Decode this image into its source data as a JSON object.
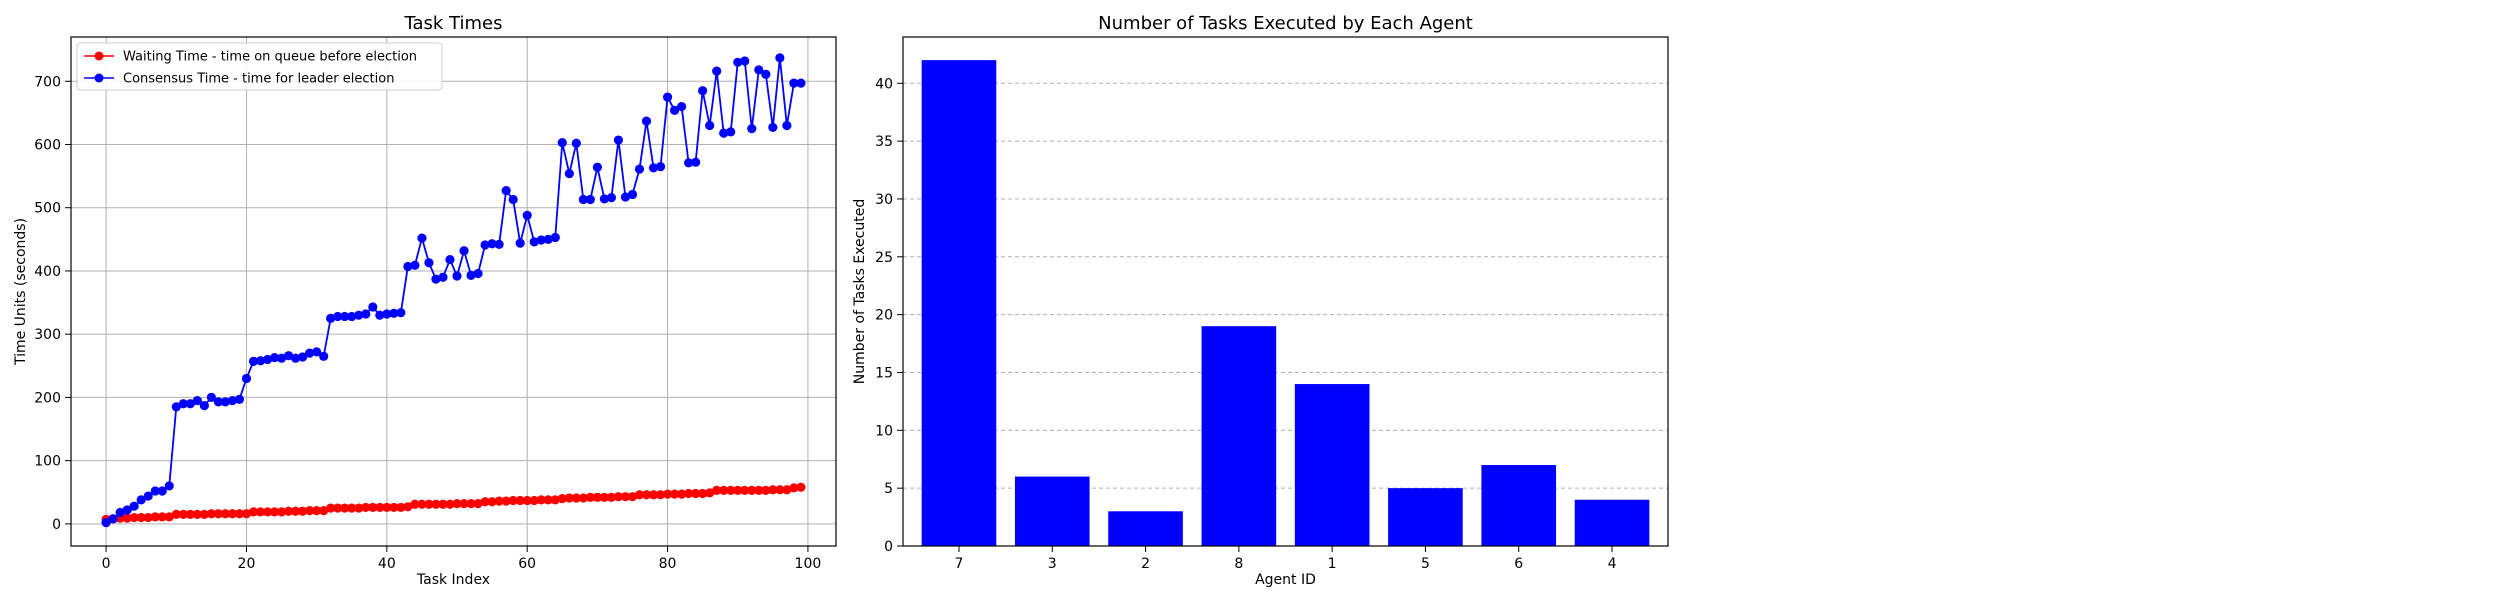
{
  "chart_data": [
    {
      "type": "line",
      "title": "Task Times",
      "xlabel": "Task Index",
      "ylabel": "Time Units (seconds)",
      "xlim": [
        -5,
        104
      ],
      "ylim": [
        -35,
        770
      ],
      "xticks": [
        0,
        20,
        40,
        60,
        80,
        100
      ],
      "yticks": [
        0,
        100,
        200,
        300,
        400,
        500,
        600,
        700
      ],
      "grid": true,
      "legend_position": "top-left",
      "series": [
        {
          "name": "Waiting Time - time on queue before election",
          "color": "#ff0000",
          "marker": "circle",
          "x": [
            0,
            1,
            2,
            3,
            4,
            5,
            6,
            7,
            8,
            9,
            10,
            11,
            12,
            13,
            14,
            15,
            16,
            17,
            18,
            19,
            20,
            21,
            22,
            23,
            24,
            25,
            26,
            27,
            28,
            29,
            30,
            31,
            32,
            33,
            34,
            35,
            36,
            37,
            38,
            39,
            40,
            41,
            42,
            43,
            44,
            45,
            46,
            47,
            48,
            49,
            50,
            51,
            52,
            53,
            54,
            55,
            56,
            57,
            58,
            59,
            60,
            61,
            62,
            63,
            64,
            65,
            66,
            67,
            68,
            69,
            70,
            71,
            72,
            73,
            74,
            75,
            76,
            77,
            78,
            79,
            80,
            81,
            82,
            83,
            84,
            85,
            86,
            87,
            88,
            89,
            90,
            91,
            92,
            93,
            94,
            95,
            96,
            97,
            98,
            99
          ],
          "y": [
            7,
            8,
            9,
            9,
            10,
            10,
            10,
            11,
            11,
            11,
            15,
            15,
            15,
            15,
            15,
            16,
            16,
            16,
            16,
            16,
            16,
            19,
            19,
            19,
            19,
            19,
            20,
            20,
            20,
            21,
            21,
            21,
            25,
            25,
            25,
            25,
            25,
            26,
            26,
            26,
            26,
            26,
            26,
            27,
            31,
            31,
            31,
            31,
            31,
            31,
            32,
            32,
            32,
            32,
            35,
            35,
            36,
            36,
            37,
            37,
            37,
            37,
            38,
            38,
            38,
            40,
            41,
            41,
            41,
            42,
            42,
            42,
            42,
            43,
            43,
            43,
            46,
            46,
            46,
            46,
            47,
            47,
            47,
            48,
            48,
            48,
            49,
            53,
            53,
            53,
            53,
            53,
            53,
            53,
            53,
            54,
            54,
            54,
            57,
            58
          ]
        },
        {
          "name": "Consensus Time - time for leader election",
          "color": "#0000ff",
          "marker": "circle",
          "x": [
            0,
            1,
            2,
            3,
            4,
            5,
            6,
            7,
            8,
            9,
            10,
            11,
            12,
            13,
            14,
            15,
            16,
            17,
            18,
            19,
            20,
            21,
            22,
            23,
            24,
            25,
            26,
            27,
            28,
            29,
            30,
            31,
            32,
            33,
            34,
            35,
            36,
            37,
            38,
            39,
            40,
            41,
            42,
            43,
            44,
            45,
            46,
            47,
            48,
            49,
            50,
            51,
            52,
            53,
            54,
            55,
            56,
            57,
            58,
            59,
            60,
            61,
            62,
            63,
            64,
            65,
            66,
            67,
            68,
            69,
            70,
            71,
            72,
            73,
            74,
            75,
            76,
            77,
            78,
            79,
            80,
            81,
            82,
            83,
            84,
            85,
            86,
            87,
            88,
            89,
            90,
            91,
            92,
            93,
            94,
            95,
            96,
            97,
            98,
            99
          ],
          "y": [
            2,
            8,
            18,
            22,
            28,
            38,
            44,
            52,
            52,
            60,
            185,
            190,
            190,
            195,
            187,
            200,
            193,
            193,
            195,
            197,
            230,
            257,
            258,
            260,
            263,
            262,
            266,
            262,
            264,
            270,
            272,
            265,
            325,
            328,
            328,
            328,
            330,
            332,
            343,
            330,
            332,
            333,
            334,
            407,
            409,
            452,
            413,
            387,
            390,
            418,
            392,
            432,
            393,
            396,
            441,
            443,
            442,
            527,
            513,
            444,
            488,
            446,
            449,
            450,
            453,
            603,
            554,
            602,
            513,
            513,
            564,
            514,
            516,
            607,
            517,
            521,
            561,
            637,
            563,
            565,
            675,
            654,
            660,
            571,
            572,
            685,
            630,
            716,
            618,
            620,
            730,
            732,
            625,
            718,
            711,
            627,
            737,
            630,
            697,
            697
          ]
        }
      ]
    },
    {
      "type": "bar",
      "title": "Number of Tasks Executed by Each Agent",
      "xlabel": "Agent ID",
      "ylabel": "Number of Tasks Executed",
      "categories": [
        "7",
        "3",
        "2",
        "8",
        "1",
        "5",
        "6",
        "4"
      ],
      "values": [
        42,
        6,
        3,
        19,
        14,
        5,
        7,
        4
      ],
      "ylim": [
        0,
        44
      ],
      "yticks": [
        0,
        5,
        10,
        15,
        20,
        25,
        30,
        35,
        40
      ],
      "bar_color": "#0000ff",
      "grid": "y-dashed"
    }
  ]
}
